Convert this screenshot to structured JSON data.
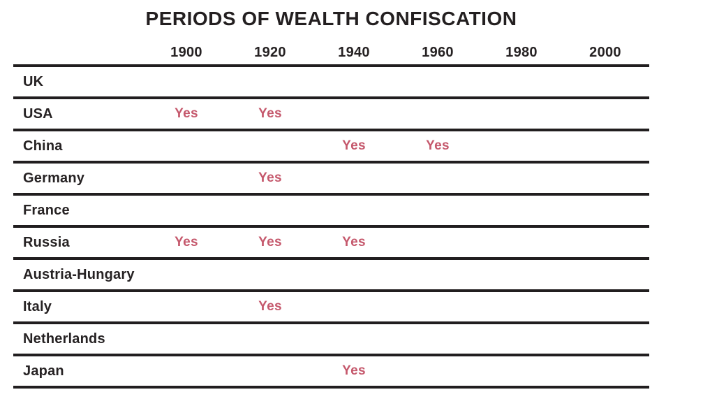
{
  "chart_data": {
    "type": "table",
    "title": "PERIODS OF WEALTH CONFISCATION",
    "xlabel": "",
    "ylabel": "",
    "categories": [
      "1900",
      "1920",
      "1940",
      "1960",
      "1980",
      "2000"
    ],
    "mark_label": "Yes",
    "rows": [
      {
        "country": "UK",
        "marks": [
          "",
          "",
          "",
          "",
          "",
          ""
        ]
      },
      {
        "country": "USA",
        "marks": [
          "Yes",
          "Yes",
          "",
          "",
          "",
          ""
        ]
      },
      {
        "country": "China",
        "marks": [
          "",
          "",
          "Yes",
          "Yes",
          "",
          ""
        ]
      },
      {
        "country": "Germany",
        "marks": [
          "",
          "Yes",
          "",
          "",
          "",
          ""
        ]
      },
      {
        "country": "France",
        "marks": [
          "",
          "",
          "",
          "",
          "",
          ""
        ]
      },
      {
        "country": "Russia",
        "marks": [
          "Yes",
          "Yes",
          "Yes",
          "",
          "",
          ""
        ]
      },
      {
        "country": "Austria-Hungary",
        "marks": [
          "",
          "",
          "",
          "",
          "",
          ""
        ]
      },
      {
        "country": "Italy",
        "marks": [
          "",
          "Yes",
          "",
          "",
          "",
          ""
        ]
      },
      {
        "country": "Netherlands",
        "marks": [
          "",
          "",
          "",
          "",
          "",
          ""
        ]
      },
      {
        "country": "Japan",
        "marks": [
          "",
          "",
          "Yes",
          "",
          "",
          ""
        ]
      }
    ],
    "layout": {
      "legend": "none",
      "grid": "horizontal-rules-only",
      "header_position": "top"
    },
    "colors": {
      "yes_text": "#c5586c",
      "rule": "#211e1f",
      "text": "#231f20",
      "background": "#ffffff"
    }
  }
}
